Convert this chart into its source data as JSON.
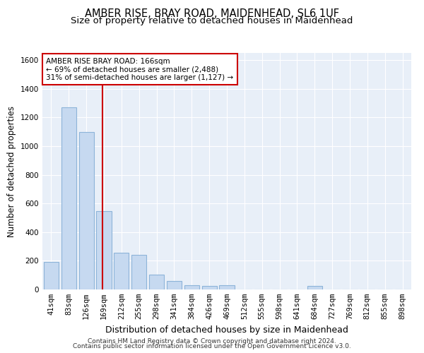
{
  "title": "AMBER RISE, BRAY ROAD, MAIDENHEAD, SL6 1UF",
  "subtitle": "Size of property relative to detached houses in Maidenhead",
  "xlabel": "Distribution of detached houses by size in Maidenhead",
  "ylabel": "Number of detached properties",
  "footnote1": "Contains HM Land Registry data © Crown copyright and database right 2024.",
  "footnote2": "Contains public sector information licensed under the Open Government Licence v3.0.",
  "bar_labels": [
    "41sqm",
    "83sqm",
    "126sqm",
    "169sqm",
    "212sqm",
    "255sqm",
    "298sqm",
    "341sqm",
    "384sqm",
    "426sqm",
    "469sqm",
    "512sqm",
    "555sqm",
    "598sqm",
    "641sqm",
    "684sqm",
    "727sqm",
    "769sqm",
    "812sqm",
    "855sqm",
    "898sqm"
  ],
  "bar_values": [
    190,
    1270,
    1100,
    545,
    255,
    240,
    105,
    60,
    30,
    25,
    30,
    0,
    0,
    0,
    0,
    25,
    0,
    0,
    0,
    0,
    0
  ],
  "bar_color": "#c6d9f0",
  "bar_edge_color": "#8db4d9",
  "ylim": [
    0,
    1650
  ],
  "yticks": [
    0,
    200,
    400,
    600,
    800,
    1000,
    1200,
    1400,
    1600
  ],
  "vline_x": 3.0,
  "vline_color": "#cc0000",
  "annotation_text": "AMBER RISE BRAY ROAD: 166sqm\n← 69% of detached houses are smaller (2,488)\n31% of semi-detached houses are larger (1,127) →",
  "annotation_box_color": "#cc0000",
  "bg_color": "#e8eff8",
  "grid_color": "#ffffff",
  "title_fontsize": 10.5,
  "subtitle_fontsize": 9.5,
  "axis_label_fontsize": 8.5,
  "tick_fontsize": 7.5,
  "footnote_fontsize": 6.5
}
